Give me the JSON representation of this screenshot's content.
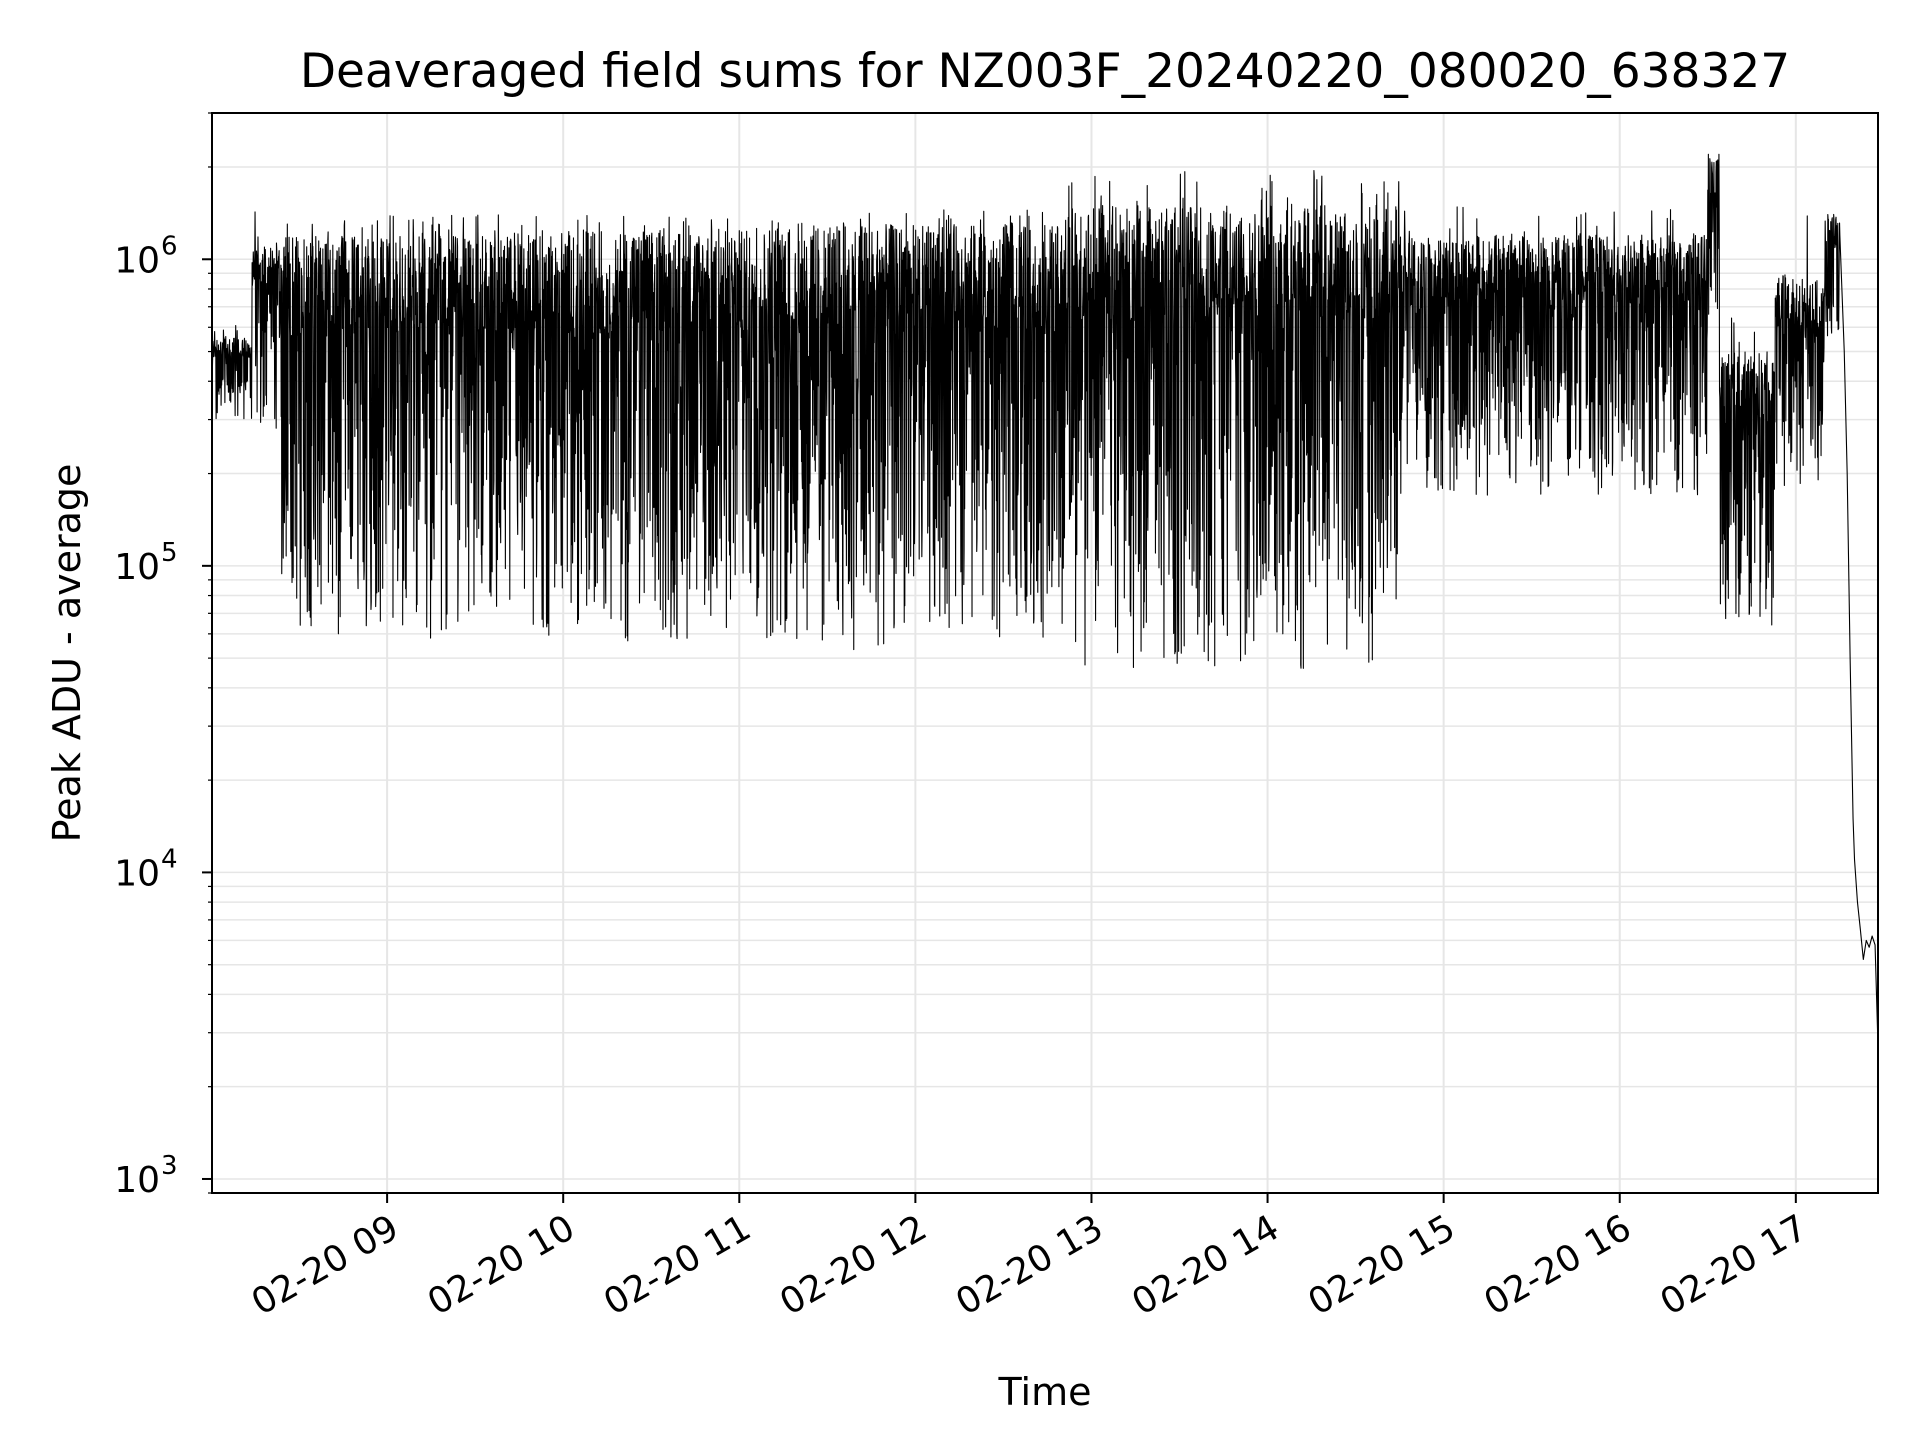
{
  "chart_data": {
    "type": "line",
    "title": "Deaveraged field sums for NZ003F_20240220_080020_638327",
    "xlabel": "Time",
    "ylabel": "Peak ADU - average",
    "x_type": "datetime",
    "xlim": [
      "2024-02-20T08:00:20",
      "2024-02-20T17:28:00"
    ],
    "yscale": "log",
    "ylim": [
      900,
      3000000
    ],
    "grid": true,
    "line_color": "#000000",
    "grid_color": "#e6e6e6",
    "x_ticks": [
      {
        "value": "2024-02-20T09:00:00",
        "label": "02-20 09"
      },
      {
        "value": "2024-02-20T10:00:00",
        "label": "02-20 10"
      },
      {
        "value": "2024-02-20T11:00:00",
        "label": "02-20 11"
      },
      {
        "value": "2024-02-20T12:00:00",
        "label": "02-20 12"
      },
      {
        "value": "2024-02-20T13:00:00",
        "label": "02-20 13"
      },
      {
        "value": "2024-02-20T14:00:00",
        "label": "02-20 14"
      },
      {
        "value": "2024-02-20T15:00:00",
        "label": "02-20 15"
      },
      {
        "value": "2024-02-20T16:00:00",
        "label": "02-20 16"
      },
      {
        "value": "2024-02-20T17:00:00",
        "label": "02-20 17"
      }
    ],
    "y_ticks": [
      {
        "value": 1000,
        "base": "10",
        "exp": "3"
      },
      {
        "value": 10000,
        "base": "10",
        "exp": "4"
      },
      {
        "value": 100000,
        "base": "10",
        "exp": "5"
      },
      {
        "value": 1000000,
        "base": "10",
        "exp": "6"
      }
    ],
    "series": [
      {
        "segments": [
          {
            "start": "2024-02-20T08:00:20",
            "end": "2024-02-20T08:14:00",
            "low": 300000,
            "high": 560000,
            "spike": 620000
          },
          {
            "start": "2024-02-20T08:14:00",
            "end": "2024-02-20T08:24:00",
            "low": 280000,
            "high": 1100000,
            "spike": 1450000
          },
          {
            "start": "2024-02-20T08:24:00",
            "end": "2024-02-20T09:30:00",
            "low": 58000,
            "high": 1200000,
            "spike": 1400000
          },
          {
            "start": "2024-02-20T09:30:00",
            "end": "2024-02-20T11:10:00",
            "low": 55000,
            "high": 1250000,
            "spike": 1400000
          },
          {
            "start": "2024-02-20T11:10:00",
            "end": "2024-02-20T12:50:00",
            "low": 52000,
            "high": 1300000,
            "spike": 1450000
          },
          {
            "start": "2024-02-20T12:50:00",
            "end": "2024-02-20T14:45:00",
            "low": 46000,
            "high": 1500000,
            "spike": 1950000
          },
          {
            "start": "2024-02-20T14:45:00",
            "end": "2024-02-20T16:30:00",
            "low": 170000,
            "high": 1200000,
            "spike": 1500000
          },
          {
            "start": "2024-02-20T16:30:00",
            "end": "2024-02-20T16:34:00",
            "low": 600000,
            "high": 2200000,
            "spike": 2200000
          },
          {
            "start": "2024-02-20T16:34:00",
            "end": "2024-02-20T16:53:00",
            "low": 58000,
            "high": 500000,
            "spike": 700000
          },
          {
            "start": "2024-02-20T16:53:00",
            "end": "2024-02-20T17:10:00",
            "low": 180000,
            "high": 900000,
            "spike": 1450000
          },
          {
            "start": "2024-02-20T17:10:00",
            "end": "2024-02-20T17:15:00",
            "low": 500000,
            "high": 1400000,
            "spike": 1400000
          }
        ],
        "tail": [
          {
            "x": "2024-02-20T17:15:00",
            "y": 1200000
          },
          {
            "x": "2024-02-20T17:16:30",
            "y": 500000
          },
          {
            "x": "2024-02-20T17:17:30",
            "y": 200000
          },
          {
            "x": "2024-02-20T17:18:30",
            "y": 50000
          },
          {
            "x": "2024-02-20T17:19:30",
            "y": 15000
          },
          {
            "x": "2024-02-20T17:20:00",
            "y": 11000
          },
          {
            "x": "2024-02-20T17:21:00",
            "y": 8000
          },
          {
            "x": "2024-02-20T17:22:00",
            "y": 6500
          },
          {
            "x": "2024-02-20T17:23:00",
            "y": 5200
          },
          {
            "x": "2024-02-20T17:24:00",
            "y": 6000
          },
          {
            "x": "2024-02-20T17:25:00",
            "y": 5700
          },
          {
            "x": "2024-02-20T17:26:00",
            "y": 6200
          },
          {
            "x": "2024-02-20T17:27:00",
            "y": 5800
          },
          {
            "x": "2024-02-20T17:28:00",
            "y": 2700
          }
        ]
      }
    ]
  }
}
